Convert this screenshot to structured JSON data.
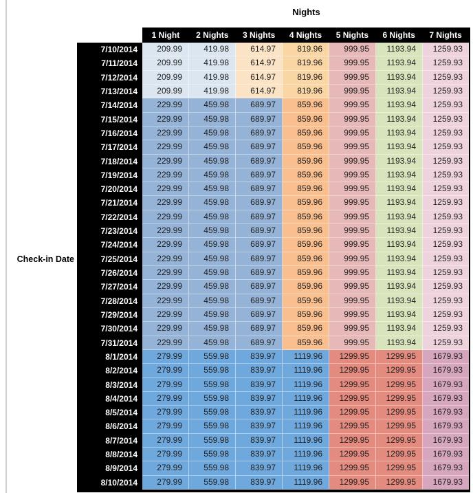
{
  "colors": {
    "background": "#ffffff",
    "header_bg": "#000000",
    "header_text": "#ffffff",
    "row_label_bg": "#000000",
    "row_label_text": "#ffffff",
    "value_text": "#1f1f1f",
    "edge_line": "#cfcfcf"
  },
  "chart_data": {
    "type": "table",
    "title": "Nights",
    "row_axis_label": "Check-in Date",
    "columns": [
      "1 Night",
      "2 Nights",
      "3 Nights",
      "4 Nights",
      "5 Nights",
      "6 Nights",
      "7 Nights"
    ],
    "sections": [
      {
        "dates": [
          "7/10/2014",
          "7/11/2014",
          "7/12/2014",
          "7/13/2014"
        ],
        "values": [
          "209.99",
          "419.98",
          "614.97",
          "819.96",
          "999.95",
          "1193.94",
          "1259.93"
        ],
        "cell_colors": [
          "#dce6f1",
          "#dce6f1",
          "#fbe3c6",
          "#fbd6a5",
          "#e6b8b7",
          "#d8e4bc",
          "#eed3dc"
        ]
      },
      {
        "dates": [
          "7/14/2014",
          "7/15/2014",
          "7/16/2014",
          "7/17/2014",
          "7/18/2014",
          "7/19/2014",
          "7/20/2014",
          "7/21/2014",
          "7/22/2014",
          "7/23/2014",
          "7/24/2014",
          "7/25/2014",
          "7/26/2014",
          "7/27/2014",
          "7/28/2014",
          "7/29/2014",
          "7/30/2014",
          "7/31/2014"
        ],
        "values": [
          "229.99",
          "459.98",
          "689.97",
          "859.96",
          "999.95",
          "1193.94",
          "1259.93"
        ],
        "cell_colors": [
          "#95b3d7",
          "#95b3d7",
          "#95b3d7",
          "#fabf8f",
          "#e6b8b7",
          "#d8e4bc",
          "#eed3dc"
        ]
      },
      {
        "dates": [
          "8/1/2014",
          "8/2/2014",
          "8/3/2014",
          "8/4/2014",
          "8/5/2014",
          "8/6/2014",
          "8/7/2014",
          "8/8/2014",
          "8/9/2014",
          "8/10/2014"
        ],
        "values": [
          "279.99",
          "559.98",
          "839.97",
          "1119.96",
          "1299.95",
          "1299.95",
          "1679.93"
        ],
        "cell_colors": [
          "#6fa8dc",
          "#6fa8dc",
          "#6fa8dc",
          "#6fa8dc",
          "#e48b7f",
          "#e48b7f",
          "#d5a6bd"
        ]
      }
    ]
  }
}
